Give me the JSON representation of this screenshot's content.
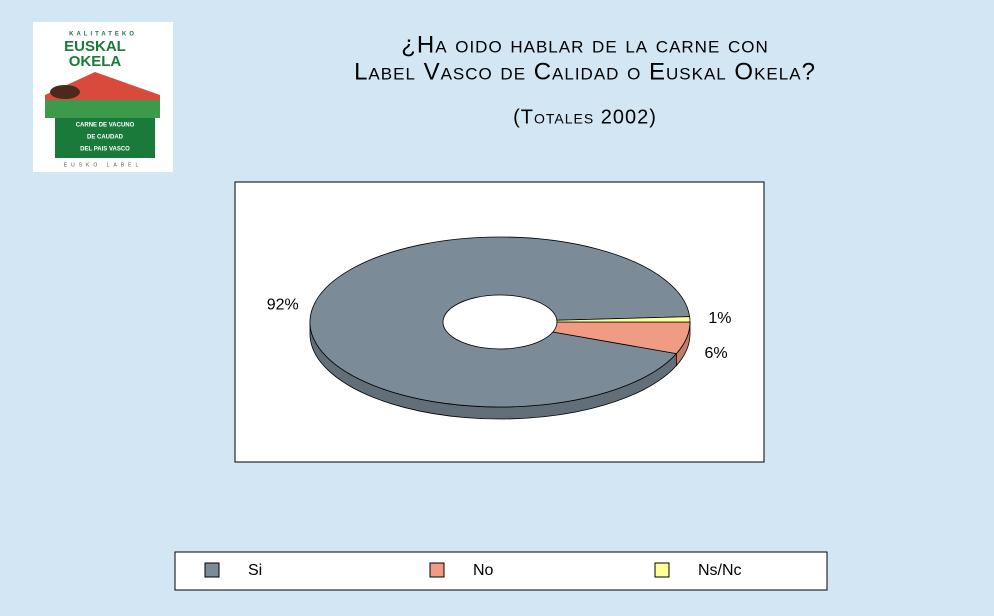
{
  "logo": {
    "top": "KALITATEKO",
    "line1": "EUSKAL",
    "line2": "OKELA",
    "band1": "CARNE DE VACUNO",
    "band2": "DE CAUDAD",
    "band3": "DEL PAIS VASCO",
    "bottom": "EUSKO LABEL"
  },
  "chart_data": {
    "type": "donut3d",
    "title": [
      "¿Ha oido hablar de la carne con",
      "Label Vasco de Calidad o Euskal Okela?"
    ],
    "subtitle": "(Totales 2002)",
    "categories": [
      "Si",
      "No",
      "Ns/Nc"
    ],
    "values": [
      92,
      6,
      1
    ],
    "value_labels": [
      "92%",
      "6%",
      "1%"
    ],
    "colors": [
      "#7b8b97",
      "#f09c85",
      "#ffff99"
    ],
    "legend": "bottom"
  }
}
